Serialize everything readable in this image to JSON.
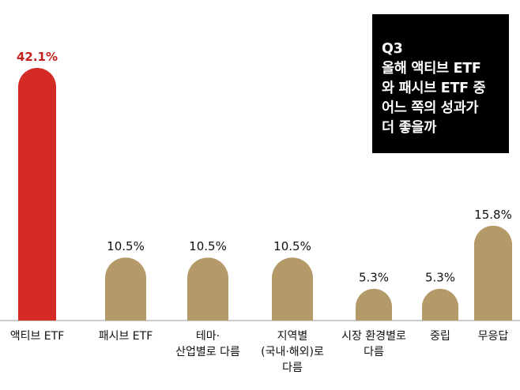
{
  "question_box": {
    "number": "Q3",
    "text": "올해 액티브 ETF\n와 패시브 ETF 중\n어느 쪽의 성과가\n더 좋을까"
  },
  "chart_data": {
    "type": "bar",
    "categories": [
      "액티브 ETF",
      "패시브 ETF",
      "테마·\n산업별로 다름",
      "지역별\n(국내·해외)로\n다름",
      "시장 환경별로\n다름",
      "중립",
      "무응답"
    ],
    "values": [
      42.1,
      10.5,
      10.5,
      10.5,
      5.3,
      5.3,
      15.8
    ],
    "value_labels": [
      "42.1%",
      "10.5%",
      "10.5%",
      "10.5%",
      "5.3%",
      "5.3%",
      "15.8%"
    ],
    "unit": "%",
    "ylim": [
      0,
      42.1
    ],
    "grid": false,
    "colors": {
      "highlight": "#d42b27",
      "default": "#b59a69",
      "highlight_label": "#c41f1c",
      "label": "#111111",
      "baseline": "#999999"
    },
    "highlight_index": 0
  }
}
